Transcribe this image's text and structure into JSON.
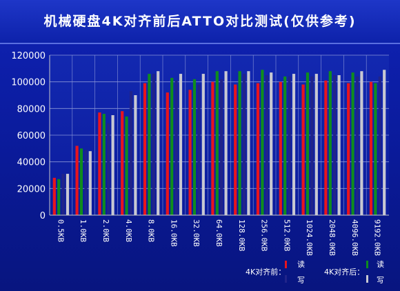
{
  "title": "机械硬盘4K对齐前后ATTO对比测试(仅供参考)",
  "chart_data": {
    "type": "bar",
    "title": "机械硬盘4K对齐前后ATTO对比测试(仅供参考)",
    "xlabel": "",
    "ylabel": "",
    "ylim": [
      0,
      120000
    ],
    "yticks": [
      0,
      20000,
      40000,
      60000,
      80000,
      100000,
      120000
    ],
    "categories": [
      "0.5KB",
      "1.0KB",
      "2.0KB",
      "4.0KB",
      "8.0KB",
      "16.0KB",
      "32.0KB",
      "64.0KB",
      "128.0KB",
      "256.0KB",
      "512.0KB",
      "1024.0KB",
      "2048.0KB",
      "4096.0KB",
      "9192.0KB"
    ],
    "series": [
      {
        "name": "读",
        "group": "4K对齐前",
        "color": "#e8141e",
        "values": [
          28000,
          52000,
          77000,
          78000,
          99000,
          92000,
          94000,
          100000,
          98000,
          99000,
          100000,
          98000,
          101000,
          99000,
          100000
        ]
      },
      {
        "name": "读",
        "group": "4K对齐后",
        "color": "#0f8c1e",
        "values": [
          27000,
          50000,
          76000,
          74000,
          106000,
          103000,
          102000,
          108000,
          108000,
          109000,
          104000,
          107000,
          108000,
          107000,
          99000
        ]
      },
      {
        "name": "写",
        "group": "4K对齐前",
        "color": "#20248a",
        "values": [
          31000,
          49000,
          69000,
          93000,
          106000,
          101000,
          98000,
          102000,
          106000,
          105000,
          104000,
          104000,
          105000,
          104000,
          104000
        ]
      },
      {
        "name": "写",
        "group": "4K对齐后",
        "color": "#c8c8d2",
        "values": [
          31000,
          48000,
          75000,
          90000,
          108000,
          106000,
          106000,
          108000,
          108000,
          107000,
          106000,
          106000,
          105000,
          108000,
          109000
        ]
      }
    ],
    "grid": true,
    "legend_position": "bottom-right",
    "legend": {
      "groups": [
        "4K对齐前：",
        "4K对齐后："
      ],
      "read_label": "读",
      "write_label": "写"
    }
  }
}
